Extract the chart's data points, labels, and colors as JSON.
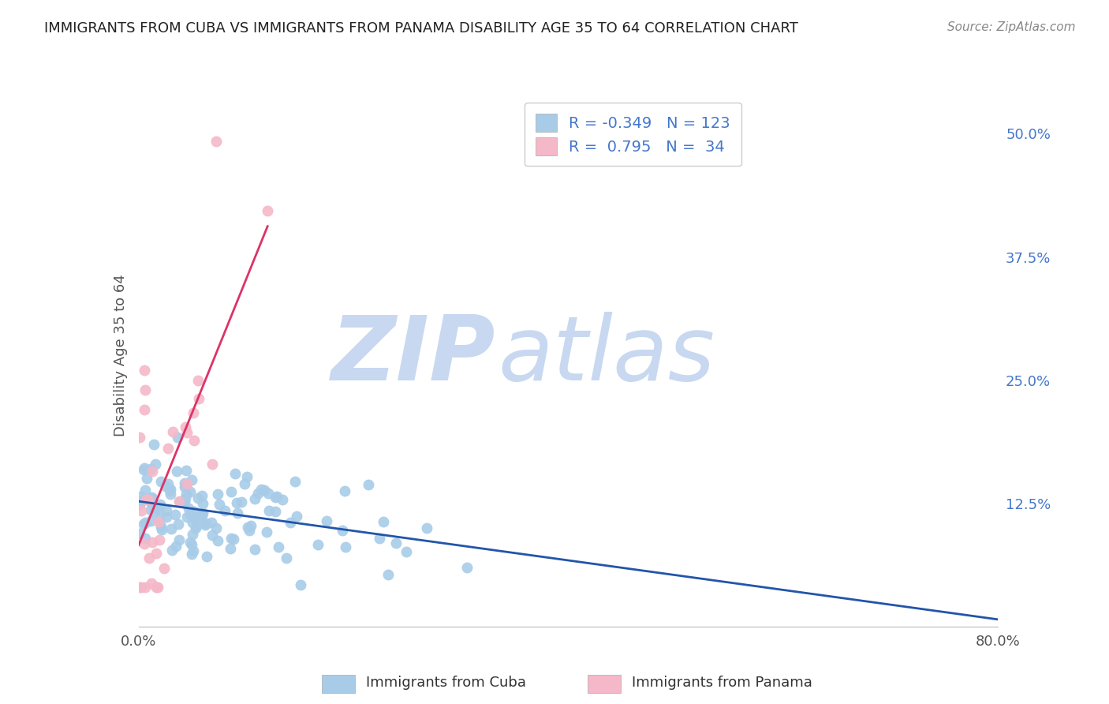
{
  "title": "IMMIGRANTS FROM CUBA VS IMMIGRANTS FROM PANAMA DISABILITY AGE 35 TO 64 CORRELATION CHART",
  "source": "Source: ZipAtlas.com",
  "ylabel": "Disability Age 35 to 64",
  "cuba_R": -0.349,
  "cuba_N": 123,
  "panama_R": 0.795,
  "panama_N": 34,
  "xlim": [
    0.0,
    0.8
  ],
  "ylim": [
    0.0,
    0.55
  ],
  "yticks": [
    0.0,
    0.125,
    0.25,
    0.375,
    0.5
  ],
  "ytick_labels": [
    "",
    "12.5%",
    "25.0%",
    "37.5%",
    "50.0%"
  ],
  "xticks": [
    0.0,
    0.1,
    0.2,
    0.3,
    0.4,
    0.5,
    0.6,
    0.7,
    0.8
  ],
  "xtick_labels": [
    "0.0%",
    "",
    "",
    "",
    "",
    "",
    "",
    "",
    "80.0%"
  ],
  "cuba_color": "#a8cce8",
  "panama_color": "#f4b8c8",
  "cuba_line_color": "#2255aa",
  "panama_line_color": "#dd3366",
  "watermark_zip_color": "#c8d8f0",
  "watermark_atlas_color": "#c8d8f0",
  "background_color": "#ffffff",
  "grid_color": "#e0e0e0",
  "legend_text_color": "#4477cc",
  "axis_text_color": "#4477cc",
  "title_color": "#222222",
  "source_color": "#888888",
  "ylabel_color": "#555555"
}
